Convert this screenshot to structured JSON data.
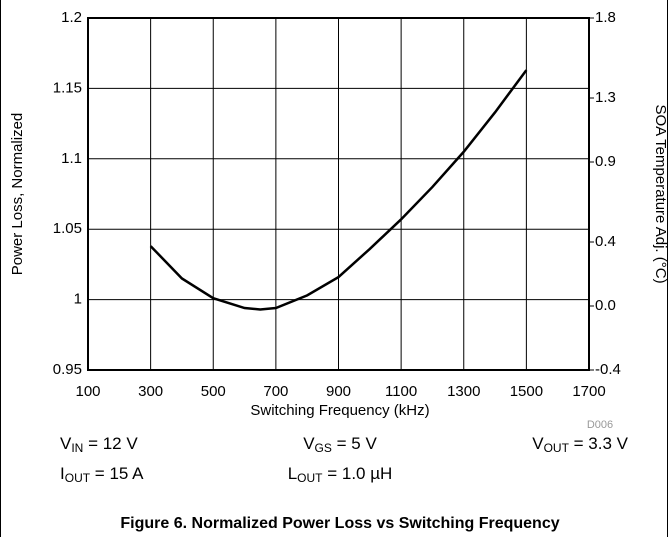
{
  "chart_data": {
    "type": "line",
    "title": "Figure 6. Normalized Power Loss vs Switching Frequency",
    "xlabel": "Switching Frequency (kHz)",
    "ylabel": "Power Loss, Normalized",
    "y2label": "SOA Temperature Adj. (°C)",
    "figure_id": "D006",
    "x": [
      300,
      400,
      500,
      600,
      650,
      700,
      800,
      900,
      1000,
      1100,
      1200,
      1300,
      1400,
      1500
    ],
    "series": [
      {
        "name": "Power Loss",
        "color": "#000000",
        "values": [
          1.038,
          1.015,
          1.001,
          0.994,
          0.993,
          0.994,
          1.003,
          1.016,
          1.036,
          1.057,
          1.08,
          1.105,
          1.133,
          1.163
        ]
      }
    ],
    "xlim": [
      100,
      1700
    ],
    "xticks": [
      100,
      300,
      500,
      700,
      900,
      1100,
      1300,
      1500,
      1700
    ],
    "ylim": [
      0.95,
      1.2
    ],
    "yticks": [
      0.95,
      1,
      1.05,
      1.1,
      1.15,
      1.2
    ],
    "y2lim": [
      -0.4,
      1.8
    ],
    "y2ticks": [
      -0.4,
      {
        "value": 0,
        "label": "0.0"
      },
      0.4,
      0.9,
      1.3,
      1.8
    ],
    "grid": true,
    "annotations": [
      {
        "main": "V",
        "sub": "IN",
        "rest": " = 12 V"
      },
      {
        "main": "V",
        "sub": "GS",
        "rest": " = 5 V"
      },
      {
        "main": "V",
        "sub": "OUT",
        "rest": " = 3.3 V"
      },
      {
        "main": "I",
        "sub": "OUT",
        "rest": " = 15 A"
      },
      {
        "main": "L",
        "sub": "OUT",
        "rest": " = 1.0 µH"
      }
    ]
  }
}
